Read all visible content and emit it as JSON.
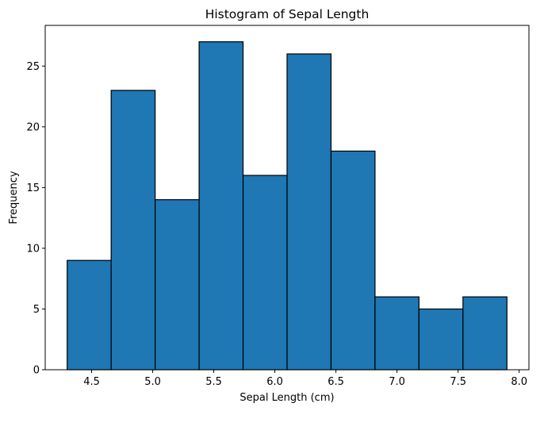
{
  "chart_data": {
    "type": "bar",
    "title": "Histogram of Sepal Length",
    "xlabel": "Sepal Length (cm)",
    "ylabel": "Frequency",
    "bin_edges": [
      4.3,
      4.66,
      5.02,
      5.38,
      5.74,
      6.1,
      6.46,
      6.82,
      7.18,
      7.54,
      7.9
    ],
    "values": [
      9,
      23,
      14,
      27,
      16,
      26,
      18,
      6,
      5,
      6
    ],
    "xlim": [
      4.12,
      8.08
    ],
    "ylim": [
      0,
      28.35
    ],
    "xticks": [
      4.5,
      5.0,
      5.5,
      6.0,
      6.5,
      7.0,
      7.5,
      8.0
    ],
    "xtick_labels": [
      "4.5",
      "5.0",
      "5.5",
      "6.0",
      "6.5",
      "7.0",
      "7.5",
      "8.0"
    ],
    "yticks": [
      0,
      5,
      10,
      15,
      20,
      25
    ],
    "ytick_labels": [
      "0",
      "5",
      "10",
      "15",
      "20",
      "25"
    ],
    "grid": false,
    "bar_color": "#1f77b4",
    "edge_color": "#000000"
  }
}
